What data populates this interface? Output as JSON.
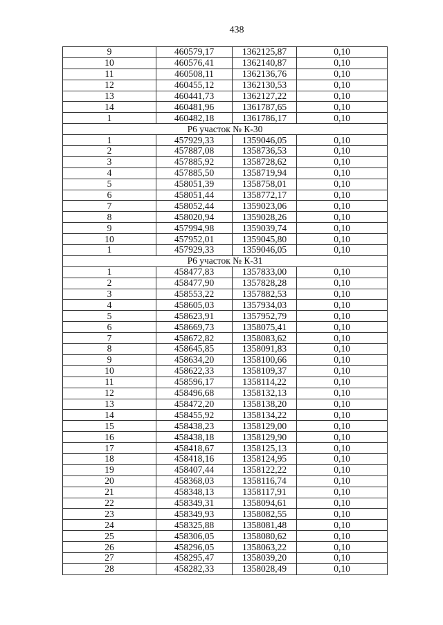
{
  "page_number": "438",
  "sections": [
    {
      "header": "",
      "rows": [
        [
          "9",
          "460579,17",
          "1362125,87",
          "0,10"
        ],
        [
          "10",
          "460576,41",
          "1362140,87",
          "0,10"
        ],
        [
          "11",
          "460508,11",
          "1362136,76",
          "0,10"
        ],
        [
          "12",
          "460455,12",
          "1362130,53",
          "0,10"
        ],
        [
          "13",
          "460441,73",
          "1362127,22",
          "0,10"
        ],
        [
          "14",
          "460481,96",
          "1361787,65",
          "0,10"
        ],
        [
          "1",
          "460482,18",
          "1361786,17",
          "0,10"
        ]
      ]
    },
    {
      "header": "Р6 участок № К-30",
      "rows": [
        [
          "1",
          "457929,33",
          "1359046,05",
          "0,10"
        ],
        [
          "2",
          "457887,08",
          "1358736,53",
          "0,10"
        ],
        [
          "3",
          "457885,92",
          "1358728,62",
          "0,10"
        ],
        [
          "4",
          "457885,50",
          "1358719,94",
          "0,10"
        ],
        [
          "5",
          "458051,39",
          "1358758,01",
          "0,10"
        ],
        [
          "6",
          "458051,44",
          "1358772,17",
          "0,10"
        ],
        [
          "7",
          "458052,44",
          "1359023,06",
          "0,10"
        ],
        [
          "8",
          "458020,94",
          "1359028,26",
          "0,10"
        ],
        [
          "9",
          "457994,98",
          "1359039,74",
          "0,10"
        ],
        [
          "10",
          "457952,01",
          "1359045,80",
          "0,10"
        ],
        [
          "1",
          "457929,33",
          "1359046,05",
          "0,10"
        ]
      ]
    },
    {
      "header": "Р6 участок № К-31",
      "rows": [
        [
          "1",
          "458477,83",
          "1357833,00",
          "0,10"
        ],
        [
          "2",
          "458477,90",
          "1357828,28",
          "0,10"
        ],
        [
          "3",
          "458553,22",
          "1357882,53",
          "0,10"
        ],
        [
          "4",
          "458605,03",
          "1357934,03",
          "0,10"
        ],
        [
          "5",
          "458623,91",
          "1357952,79",
          "0,10"
        ],
        [
          "6",
          "458669,73",
          "1358075,41",
          "0,10"
        ],
        [
          "7",
          "458672,82",
          "1358083,62",
          "0,10"
        ],
        [
          "8",
          "458645,85",
          "1358091,83",
          "0,10"
        ],
        [
          "9",
          "458634,20",
          "1358100,66",
          "0,10"
        ],
        [
          "10",
          "458622,33",
          "1358109,37",
          "0,10"
        ],
        [
          "11",
          "458596,17",
          "1358114,22",
          "0,10"
        ],
        [
          "12",
          "458496,68",
          "1358132,13",
          "0,10"
        ],
        [
          "13",
          "458472,20",
          "1358138,20",
          "0,10"
        ],
        [
          "14",
          "458455,92",
          "1358134,22",
          "0,10"
        ],
        [
          "15",
          "458438,23",
          "1358129,00",
          "0,10"
        ],
        [
          "16",
          "458438,18",
          "1358129,90",
          "0,10"
        ],
        [
          "17",
          "458418,67",
          "1358125,13",
          "0,10"
        ],
        [
          "18",
          "458418,16",
          "1358124,95",
          "0,10"
        ],
        [
          "19",
          "458407,44",
          "1358122,22",
          "0,10"
        ],
        [
          "20",
          "458368,03",
          "1358116,74",
          "0,10"
        ],
        [
          "21",
          "458348,13",
          "1358117,91",
          "0,10"
        ],
        [
          "22",
          "458349,31",
          "1358094,61",
          "0,10"
        ],
        [
          "23",
          "458349,93",
          "1358082,55",
          "0,10"
        ],
        [
          "24",
          "458325,88",
          "1358081,48",
          "0,10"
        ],
        [
          "25",
          "458306,05",
          "1358080,62",
          "0,10"
        ],
        [
          "26",
          "458296,05",
          "1358063,22",
          "0,10"
        ],
        [
          "27",
          "458295,47",
          "1358039,20",
          "0,10"
        ],
        [
          "28",
          "458282,33",
          "1358028,49",
          "0,10"
        ]
      ]
    }
  ]
}
